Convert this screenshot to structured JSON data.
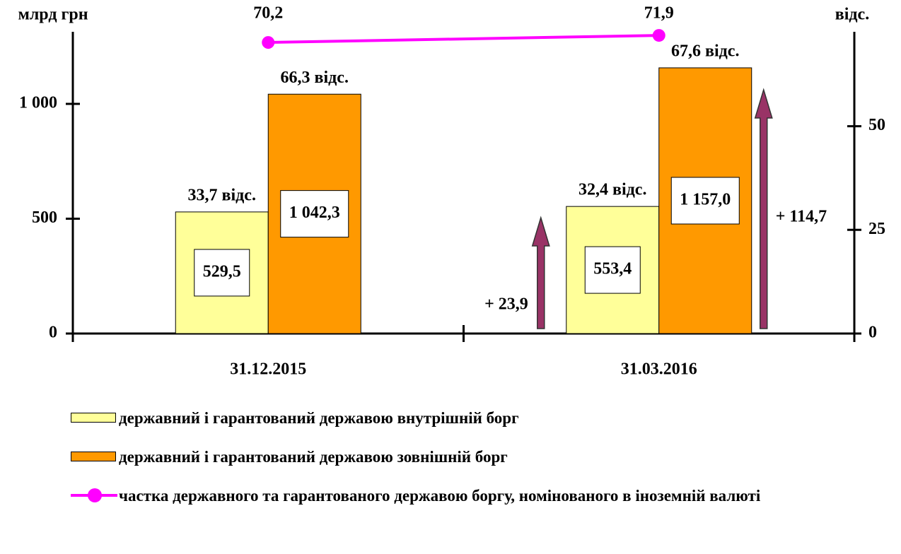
{
  "chart_data": {
    "type": "bar",
    "ylabel": "млрд грн",
    "y2label": "відс.",
    "categories": [
      "31.12.2015",
      "31.03.2016"
    ],
    "ylim": [
      0,
      1300
    ],
    "yticks": [
      0,
      500,
      {
        "value": 1000,
        "label": "1 000"
      }
    ],
    "y2lim": [
      0,
      72
    ],
    "y2ticks": [
      0,
      25,
      50
    ],
    "series": [
      {
        "name": "державний і гарантований державою внутрішній борг",
        "color": "#ffff99",
        "values": [
          529.5,
          553.4
        ],
        "value_labels": [
          "529,5",
          "553,4"
        ],
        "percent_labels": [
          "33,7 відс.",
          "32,4 відс."
        ],
        "change_label": "+ 23,9"
      },
      {
        "name": "державний і гарантований державою зовнішній борг",
        "color": "#ff9900",
        "values": [
          1042.3,
          1157.0
        ],
        "value_labels": [
          "1 042,3",
          "1 157,0"
        ],
        "percent_labels": [
          "66,3 відс.",
          "67,6 відс."
        ],
        "change_label": "+ 114,7"
      },
      {
        "name": "частка державного та гарантованого державою боргу, номінованого в іноземній валюті",
        "color": "#ff00ff",
        "type": "line",
        "axis": "y2",
        "values": [
          70.2,
          71.9
        ],
        "value_labels": [
          "70,2",
          "71,9"
        ]
      }
    ]
  }
}
